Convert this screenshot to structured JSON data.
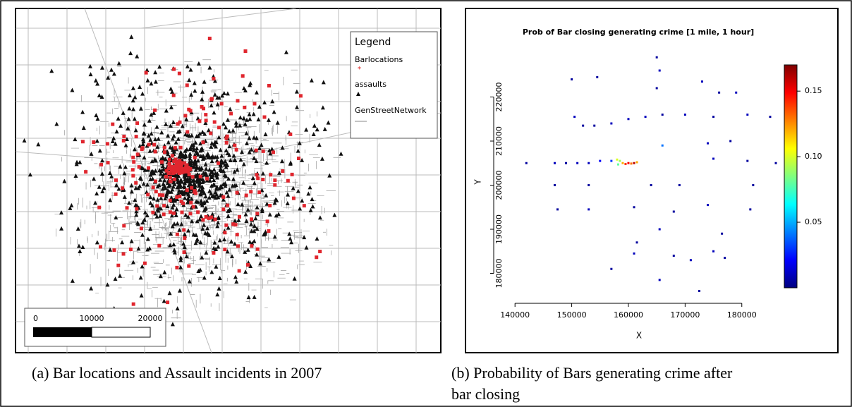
{
  "map_panel": {
    "legend": {
      "title": "Legend",
      "items": [
        "Barlocations",
        "assaults",
        "GenStreetNetwork"
      ]
    },
    "scale_bar": {
      "labels": [
        "0",
        "10000",
        "20000"
      ]
    },
    "caption": "(a) Bar locations and Assault incidents in 2007"
  },
  "chart_data": {
    "type": "scatter",
    "title": "Prob of Bar closing generating crime [1 mile, 1 hour]",
    "x_label": "X",
    "y_label": "Y",
    "xlim": [
      135000,
      186000
    ],
    "ylim": [
      174000,
      230000
    ],
    "xticks": [
      140000,
      150000,
      160000,
      170000,
      180000
    ],
    "yticks": [
      180000,
      190000,
      200000,
      210000,
      220000
    ],
    "clim": [
      0,
      0.17
    ],
    "cticks": [
      0.05,
      {
        "value": 0.1,
        "label": "0.10"
      },
      0.15
    ],
    "colormap": "jet",
    "x": [
      142000,
      147000,
      149000,
      151000,
      153000,
      155000,
      157000,
      158000,
      158500,
      159000,
      159500,
      160000,
      160500,
      161000,
      161500,
      158200,
      150000,
      154500,
      150500,
      152000,
      154000,
      157000,
      160000,
      163000,
      166000,
      170000,
      175000,
      181000,
      185000,
      165500,
      165000,
      173000,
      176000,
      179000,
      165000,
      166000,
      174000,
      178000,
      181000,
      186000,
      175000,
      147000,
      153000,
      164000,
      169000,
      182000,
      147500,
      153000,
      161000,
      168000,
      174000,
      181500,
      165500,
      161500,
      176500,
      161000,
      168000,
      171000,
      175000,
      177000,
      157000,
      165500,
      172500
    ],
    "y": [
      205000,
      205000,
      205000,
      205000,
      205000,
      205500,
      205500,
      205800,
      205500,
      205000,
      204800,
      205000,
      204900,
      205000,
      205200,
      204700,
      224000,
      224500,
      215500,
      213500,
      213500,
      214000,
      215000,
      215500,
      216000,
      216000,
      215500,
      216000,
      215500,
      226000,
      229000,
      223500,
      221000,
      221000,
      222000,
      209000,
      209500,
      210000,
      205500,
      205000,
      206000,
      200000,
      200000,
      200000,
      200000,
      200000,
      194500,
      194500,
      195000,
      194000,
      195500,
      194500,
      190000,
      187000,
      189000,
      184500,
      184000,
      183000,
      185000,
      183500,
      181000,
      178500,
      176000
    ],
    "values": [
      0.005,
      0.01,
      0.005,
      0.01,
      0.01,
      0.02,
      0.03,
      0.1,
      0.09,
      0.12,
      0.14,
      0.15,
      0.13,
      0.16,
      0.12,
      0.08,
      0.005,
      0.005,
      0.01,
      0.005,
      0.005,
      0.01,
      0.01,
      0.01,
      0.005,
      0.01,
      0.005,
      0.01,
      0.005,
      0.01,
      0.005,
      0.01,
      0.005,
      0.01,
      0.005,
      0.04,
      0.01,
      0.005,
      0.005,
      0.005,
      0.01,
      0.005,
      0.005,
      0.005,
      0.005,
      0.005,
      0.005,
      0.01,
      0.005,
      0.005,
      0.01,
      0.005,
      0.01,
      0.005,
      0.005,
      0.01,
      0.005,
      0.01,
      0.01,
      0.005,
      0.005,
      0.01,
      0.005
    ]
  },
  "caption_b": {
    "lines": [
      "(b) Probability of Bars generating crime after",
      "bar closing"
    ]
  }
}
